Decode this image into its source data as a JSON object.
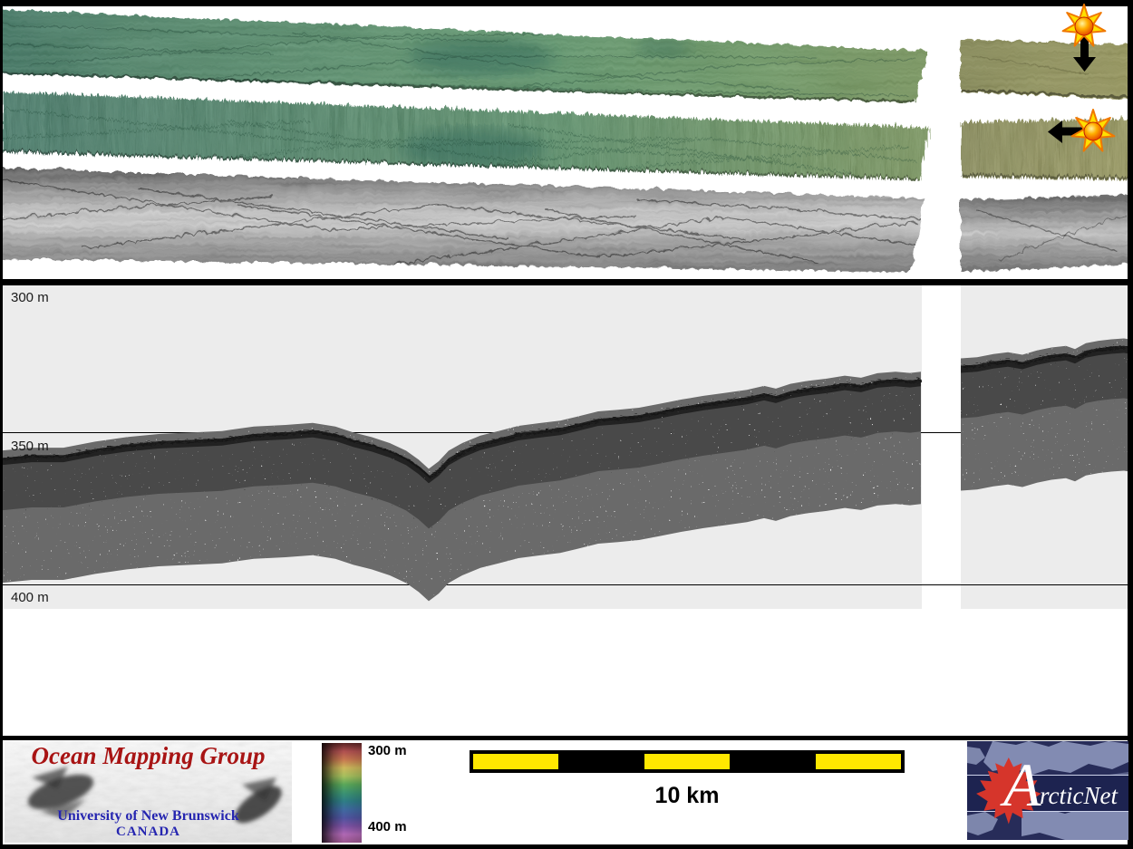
{
  "echogram": {
    "depth_labels": [
      "300 m",
      "350 m",
      "400 m"
    ]
  },
  "chart_data": {
    "type": "line",
    "y_unit": "m",
    "x_unit": "px",
    "y_tick_labels": [
      "300 m",
      "350 m",
      "400 m"
    ],
    "y_ticks_m": [
      300,
      350,
      400
    ],
    "gridlines_m": [
      350,
      400
    ],
    "series": [
      {
        "name": "seabed-profile-left",
        "points": [
          [
            0,
            358.5
          ],
          [
            35,
            357.5
          ],
          [
            70,
            357.5
          ],
          [
            105,
            355.5
          ],
          [
            140,
            354
          ],
          [
            175,
            353
          ],
          [
            210,
            352.5
          ],
          [
            245,
            352
          ],
          [
            280,
            350.5
          ],
          [
            315,
            350
          ],
          [
            345,
            349.3
          ],
          [
            370,
            350.5
          ],
          [
            390,
            352.5
          ],
          [
            410,
            354
          ],
          [
            430,
            356
          ],
          [
            448,
            358.5
          ],
          [
            462,
            361.5
          ],
          [
            473,
            364.5
          ],
          [
            484,
            362
          ],
          [
            495,
            358.5
          ],
          [
            510,
            356
          ],
          [
            530,
            353.5
          ],
          [
            550,
            352
          ],
          [
            572,
            350.3
          ],
          [
            595,
            349.4
          ],
          [
            618,
            348.6
          ],
          [
            640,
            347
          ],
          [
            660,
            345.5
          ],
          [
            682,
            345
          ],
          [
            705,
            344.3
          ],
          [
            728,
            343
          ],
          [
            752,
            341.6
          ],
          [
            776,
            340.4
          ],
          [
            800,
            339.4
          ],
          [
            824,
            338.4
          ],
          [
            843,
            337.1
          ],
          [
            856,
            338
          ],
          [
            872,
            336.4
          ],
          [
            892,
            335.4
          ],
          [
            912,
            334.7
          ],
          [
            932,
            333.7
          ],
          [
            950,
            334.4
          ],
          [
            968,
            332.9
          ],
          [
            988,
            332.4
          ],
          [
            1004,
            332.8
          ],
          [
            1016,
            332.4
          ]
        ]
      },
      {
        "name": "seabed-profile-right",
        "points": [
          [
            1060,
            328
          ],
          [
            1078,
            327.6
          ],
          [
            1096,
            326.6
          ],
          [
            1112,
            326
          ],
          [
            1128,
            326.8
          ],
          [
            1144,
            325.4
          ],
          [
            1160,
            324.4
          ],
          [
            1176,
            323.9
          ],
          [
            1186,
            324.9
          ],
          [
            1198,
            323
          ],
          [
            1212,
            322.2
          ],
          [
            1226,
            321.7
          ],
          [
            1240,
            321.4
          ],
          [
            1246,
            321.7
          ]
        ]
      }
    ]
  },
  "sun_icons": [
    {
      "name": "sun-illumination-down",
      "arrow": "down"
    },
    {
      "name": "sun-illumination-left",
      "arrow": "left"
    }
  ],
  "legend": {
    "top_label": "300 m",
    "bottom_label": "400 m",
    "colors": [
      "#5a2424",
      "#b05050",
      "#c87850",
      "#cdb85c",
      "#a6c05e",
      "#5aa85a",
      "#3c9472",
      "#2f7e86",
      "#3f6aa0",
      "#4f55a0",
      "#7c52a4",
      "#b068b4",
      "#9c5890"
    ]
  },
  "scale_bar": {
    "label": "10 km",
    "segment_km": 2,
    "pattern": [
      "#ffe800",
      "#000000",
      "#ffe800",
      "#000000",
      "#ffe800"
    ]
  },
  "omg_logo": {
    "title": "Ocean Mapping Group",
    "subtitle": "University of New Brunswick",
    "country": "CANADA",
    "title_color": "#a81414",
    "subtitle_color": "#2525b0"
  },
  "arcticnet_logo": {
    "initial": "A",
    "rest": "rcticNet",
    "bg_color": "#272c59",
    "band_color": "#1d2350",
    "map_color": "#8d96bb",
    "leaf_color": "#d6352b"
  }
}
